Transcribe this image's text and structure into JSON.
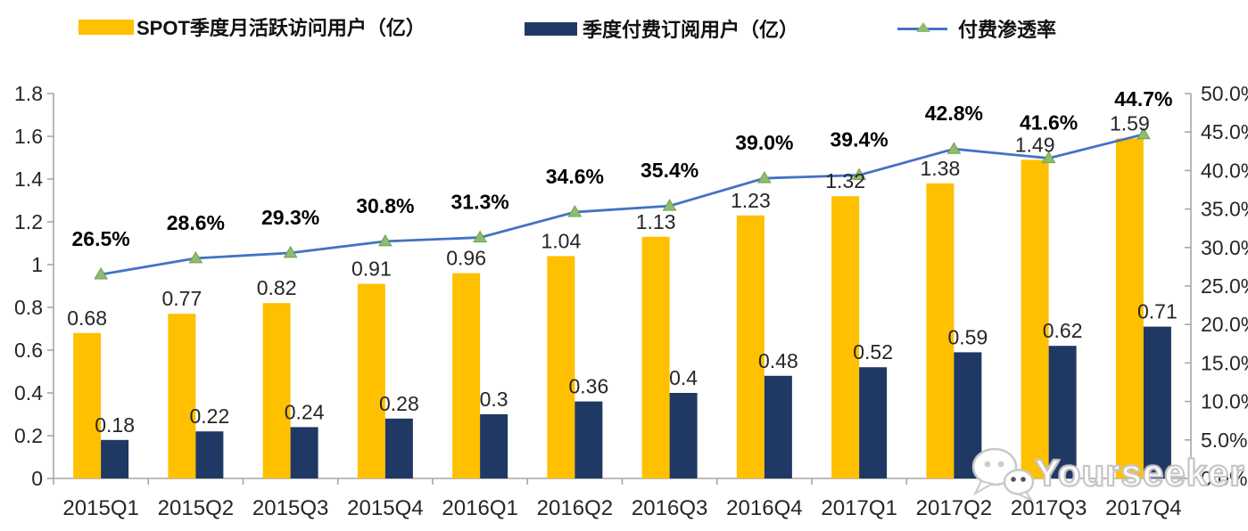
{
  "legend": {
    "items": [
      {
        "label": "SPOT季度月活跃访问用户（亿）",
        "type": "bar",
        "color": "#FFC000"
      },
      {
        "label": "季度付费订阅用户（亿）",
        "type": "bar",
        "color": "#1F3864"
      },
      {
        "label": "付费渗透率",
        "type": "line",
        "color": "#4472C4",
        "marker_color": "#8FBC6E"
      }
    ]
  },
  "chart_data": {
    "type": "bar",
    "subtype": "grouped-bars-with-line-combo",
    "categories": [
      "2015Q1",
      "2015Q2",
      "2015Q3",
      "2015Q4",
      "2016Q1",
      "2016Q2",
      "2016Q3",
      "2016Q4",
      "2017Q1",
      "2017Q2",
      "2017Q3",
      "2017Q4"
    ],
    "series": [
      {
        "name": "SPOT季度月活跃访问用户（亿）",
        "type": "bar",
        "axis": "left",
        "color": "#FFC000",
        "values": [
          0.68,
          0.77,
          0.82,
          0.91,
          0.96,
          1.04,
          1.13,
          1.23,
          1.32,
          1.38,
          1.49,
          1.59
        ],
        "labels": [
          "0.68",
          "0.77",
          "0.82",
          "0.91",
          "0.96",
          "1.04",
          "1.13",
          "1.23",
          "1.32",
          "1.38",
          "1.49",
          "1.59"
        ]
      },
      {
        "name": "季度付费订阅用户（亿）",
        "type": "bar",
        "axis": "left",
        "color": "#1F3864",
        "values": [
          0.18,
          0.22,
          0.24,
          0.28,
          0.3,
          0.36,
          0.4,
          0.48,
          0.52,
          0.59,
          0.62,
          0.71
        ],
        "labels": [
          "0.18",
          "0.22",
          "0.24",
          "0.28",
          "0.3",
          "0.36",
          "0.4",
          "0.48",
          "0.52",
          "0.59",
          "0.62",
          "0.71"
        ]
      },
      {
        "name": "付费渗透率",
        "type": "line",
        "axis": "right",
        "color": "#4472C4",
        "marker": "triangle",
        "marker_color": "#8FBC6E",
        "marker_edge_color": "#6FA14F",
        "values": [
          26.5,
          28.6,
          29.3,
          30.8,
          31.3,
          34.6,
          35.4,
          39.0,
          39.4,
          42.8,
          41.6,
          44.7
        ],
        "labels": [
          "26.5%",
          "28.6%",
          "29.3%",
          "30.8%",
          "31.3%",
          "34.6%",
          "35.4%",
          "39.0%",
          "39.4%",
          "42.8%",
          "41.6%",
          "44.7%"
        ]
      }
    ],
    "left_axis": {
      "min": 0,
      "max": 1.8,
      "step": 0.2,
      "ticks": [
        "0",
        "0.2",
        "0.4",
        "0.6",
        "0.8",
        "1",
        "1.2",
        "1.4",
        "1.6",
        "1.8"
      ]
    },
    "right_axis": {
      "min": 0,
      "max": 50,
      "step": 5,
      "ticks": [
        "0.0%",
        "5.0%",
        "10.0%",
        "15.0%",
        "20.0%",
        "25.0%",
        "30.0%",
        "35.0%",
        "40.0%",
        "45.0%",
        "50.0%"
      ]
    },
    "grid": false,
    "legend_position": "top",
    "colors": {
      "axis": "#A6A6A6",
      "text": "#262626",
      "pct_label_text": "#000000"
    }
  },
  "watermark": {
    "text": "Yourseeker",
    "icon": "wechat-icon"
  }
}
